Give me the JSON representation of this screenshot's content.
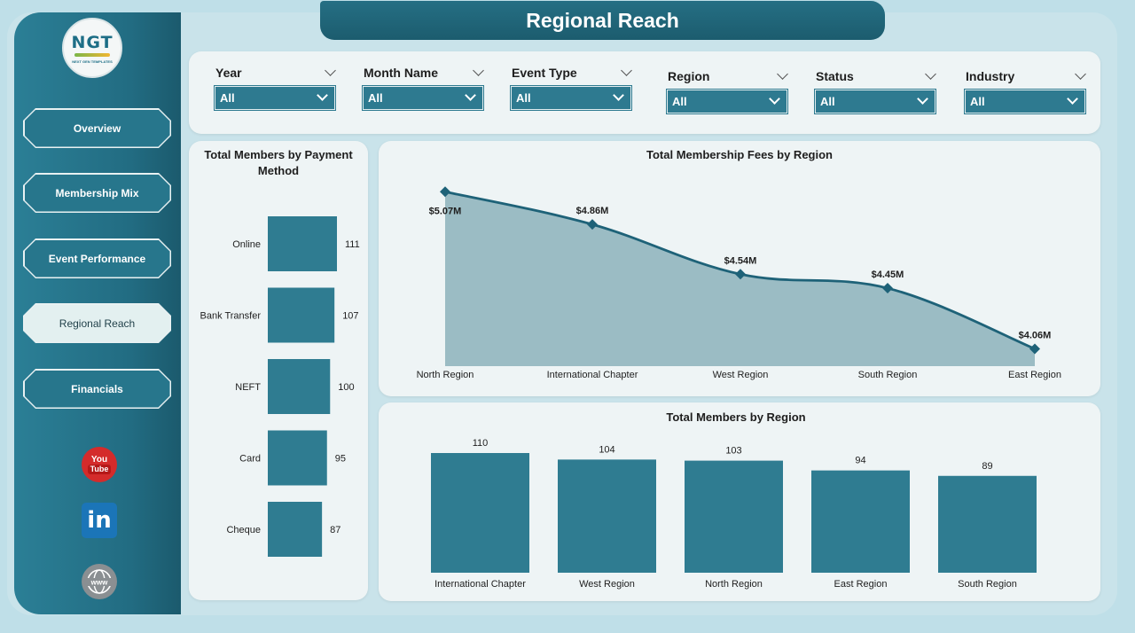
{
  "header": {
    "title": "Regional Reach"
  },
  "logo": {
    "main": "NGT",
    "sub": "NEXT GEN TEMPLATES"
  },
  "nav": [
    {
      "label": "Overview",
      "active": false
    },
    {
      "label": "Membership Mix",
      "active": false
    },
    {
      "label": "Event Performance",
      "active": false
    },
    {
      "label": "Regional Reach",
      "active": true
    },
    {
      "label": "Financials",
      "active": false
    }
  ],
  "social": {
    "youtube_top": "You",
    "youtube_bottom": "Tube",
    "linkedin": "in",
    "web": "www"
  },
  "filters": [
    {
      "label": "Year",
      "value": "All"
    },
    {
      "label": "Month Name",
      "value": "All"
    },
    {
      "label": "Event Type",
      "value": "All"
    },
    {
      "label": "Region",
      "value": "All"
    },
    {
      "label": "Status",
      "value": "All"
    },
    {
      "label": "Industry",
      "value": "All"
    }
  ],
  "colors": {
    "accent": "#2e7a90",
    "area_fill": "#96b8c1",
    "line": "#1e6278",
    "bar": "#2f7c91"
  },
  "chart_data": [
    {
      "type": "bar",
      "orientation": "horizontal",
      "title": "Total Members by Payment Method",
      "categories": [
        "Online",
        "Bank Transfer",
        "NEFT",
        "Card",
        "Cheque"
      ],
      "values": [
        111,
        107,
        100,
        95,
        87
      ]
    },
    {
      "type": "area",
      "title": "Total Membership Fees by Region",
      "categories": [
        "North Region",
        "International Chapter",
        "West Region",
        "South Region",
        "East Region"
      ],
      "values": [
        5.07,
        4.86,
        4.54,
        4.45,
        4.06
      ],
      "data_labels": [
        "$5.07M",
        "$4.86M",
        "$4.54M",
        "$4.45M",
        "$4.06M"
      ],
      "unit": "$M"
    },
    {
      "type": "bar",
      "orientation": "vertical",
      "title": "Total Members by Region",
      "categories": [
        "International Chapter",
        "West Region",
        "North Region",
        "East Region",
        "South Region"
      ],
      "values": [
        110,
        104,
        103,
        94,
        89
      ]
    }
  ]
}
